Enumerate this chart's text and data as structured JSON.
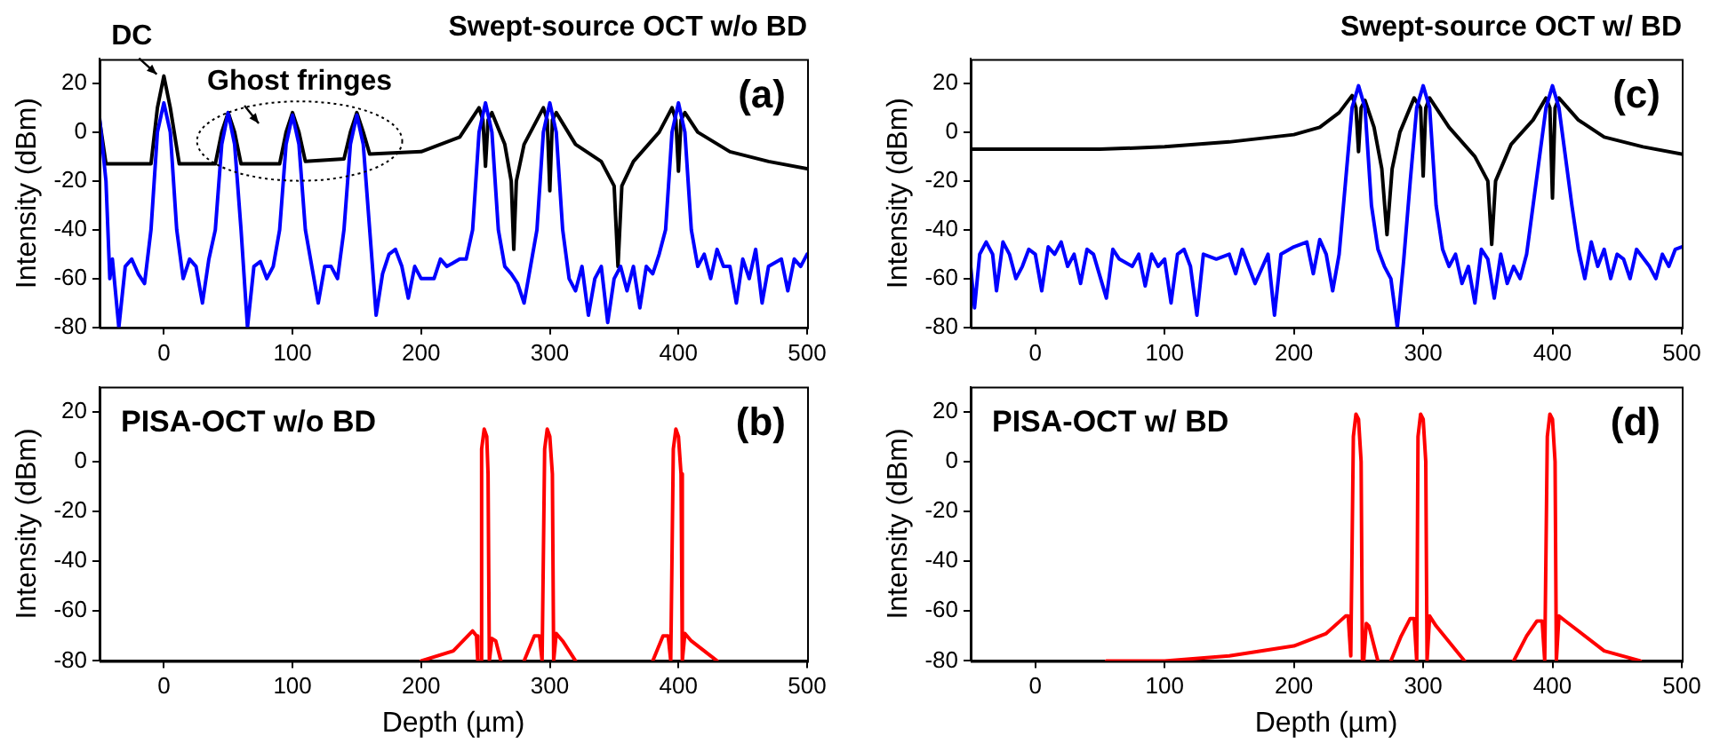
{
  "chart_data": [
    {
      "type": "line",
      "title": "Swept-source OCT w/o BD",
      "ylabel": "Intensity (dBm)",
      "xlim": [
        -50,
        500
      ],
      "xticks": [
        0,
        100,
        200,
        300,
        400,
        500
      ],
      "ylim": [
        -80,
        30
      ],
      "yticks": [
        -80,
        -60,
        -40,
        -20,
        0,
        20
      ],
      "grid": false,
      "legend": false,
      "marker": "none",
      "line_style": "solid",
      "annotations": [
        {
          "text": "DC",
          "x": 0,
          "y": 23
        },
        {
          "text": "Ghost fringes",
          "x": 100,
          "y": 8
        },
        "(a)"
      ],
      "series": [
        {
          "color": "#0000ff",
          "x": [
            -50,
            -45,
            -42,
            -40,
            -35,
            -30,
            -25,
            -20,
            -15,
            -10,
            -5,
            0,
            5,
            10,
            15,
            20,
            25,
            30,
            35,
            40,
            45,
            50,
            55,
            60,
            65,
            70,
            75,
            80,
            85,
            90,
            95,
            100,
            105,
            110,
            115,
            120,
            125,
            130,
            135,
            140,
            145,
            150,
            155,
            160,
            165,
            170,
            175,
            180,
            185,
            190,
            195,
            200,
            210,
            215,
            220,
            230,
            235,
            240,
            245,
            250,
            255,
            260,
            265,
            270,
            275,
            280,
            285,
            290,
            295,
            300,
            305,
            310,
            315,
            320,
            325,
            330,
            335,
            340,
            345,
            350,
            355,
            360,
            365,
            370,
            375,
            380,
            385,
            390,
            395,
            400,
            405,
            410,
            415,
            420,
            425,
            430,
            435,
            440,
            445,
            450,
            455,
            460,
            465,
            470,
            480,
            485,
            490,
            495,
            500
          ],
          "values": [
            6,
            -20,
            -60,
            -52,
            -80,
            -55,
            -52,
            -58,
            -62,
            -40,
            0,
            12,
            0,
            -40,
            -60,
            -52,
            -55,
            -70,
            -52,
            -40,
            -5,
            8,
            -5,
            -40,
            -80,
            -55,
            -53,
            -60,
            -55,
            -40,
            -5,
            7,
            -5,
            -40,
            -55,
            -70,
            -55,
            -55,
            -60,
            -40,
            -5,
            7,
            -5,
            -40,
            -75,
            -58,
            -50,
            -48,
            -55,
            -68,
            -55,
            -60,
            -60,
            -52,
            -55,
            -52,
            -52,
            -40,
            0,
            12,
            0,
            -40,
            -55,
            -58,
            -62,
            -70,
            -55,
            -40,
            0,
            12,
            0,
            -40,
            -60,
            -65,
            -55,
            -75,
            -60,
            -55,
            -78,
            -60,
            -55,
            -65,
            -55,
            -72,
            -55,
            -58,
            -50,
            -40,
            0,
            12,
            0,
            -40,
            -55,
            -50,
            -60,
            -48,
            -55,
            -55,
            -70,
            -52,
            -60,
            -48,
            -70,
            -55,
            -52,
            -65,
            -52,
            -55,
            -50
          ]
        },
        {
          "color": "#000000",
          "x": [
            -50,
            -45,
            -10,
            -5,
            0,
            5,
            12,
            40,
            45,
            50,
            55,
            60,
            90,
            95,
            100,
            105,
            110,
            140,
            145,
            150,
            155,
            160,
            200,
            230,
            245,
            248,
            250,
            252,
            255,
            265,
            270,
            272,
            274,
            280,
            295,
            298,
            300,
            302,
            305,
            320,
            340,
            350,
            353,
            356,
            365,
            385,
            395,
            398,
            400,
            402,
            405,
            415,
            440,
            470,
            500
          ],
          "values": [
            5,
            -13,
            -13,
            10,
            23,
            10,
            -13,
            -13,
            0,
            8,
            0,
            -13,
            -13,
            0,
            8,
            0,
            -12,
            -11,
            0,
            8,
            0,
            -9,
            -8,
            -2,
            10,
            5,
            -14,
            5,
            8,
            -5,
            -20,
            -48,
            -20,
            -5,
            10,
            5,
            -24,
            5,
            8,
            -5,
            -12,
            -22,
            -55,
            -22,
            -12,
            0,
            10,
            5,
            -16,
            5,
            8,
            0,
            -8,
            -12,
            -15
          ]
        }
      ]
    },
    {
      "type": "line",
      "title": "Swept-source OCT w/ BD",
      "ylabel": "Intensity (dBm)",
      "xlim": [
        -50,
        500
      ],
      "xticks": [
        0,
        100,
        200,
        300,
        400,
        500
      ],
      "ylim": [
        -80,
        30
      ],
      "yticks": [
        -80,
        -60,
        -40,
        -20,
        0,
        20
      ],
      "grid": false,
      "legend": false,
      "marker": "none",
      "line_style": "solid",
      "annotations": [
        "(c)"
      ],
      "series": [
        {
          "color": "#0000ff",
          "x": [
            -50,
            -47,
            -43,
            -38,
            -33,
            -30,
            -25,
            -20,
            -15,
            -10,
            -5,
            0,
            5,
            10,
            15,
            20,
            25,
            30,
            35,
            40,
            45,
            55,
            60,
            65,
            75,
            80,
            85,
            90,
            95,
            100,
            105,
            110,
            115,
            120,
            125,
            130,
            140,
            150,
            155,
            160,
            170,
            180,
            185,
            190,
            200,
            210,
            215,
            220,
            225,
            230,
            235,
            240,
            245,
            250,
            255,
            260,
            265,
            270,
            275,
            280,
            285,
            290,
            295,
            300,
            305,
            310,
            315,
            320,
            325,
            330,
            335,
            340,
            345,
            350,
            355,
            360,
            365,
            370,
            375,
            380,
            385,
            395,
            400,
            405,
            415,
            420,
            425,
            430,
            435,
            440,
            445,
            450,
            455,
            460,
            465,
            475,
            480,
            485,
            490,
            495,
            500
          ],
          "values": [
            -55,
            -72,
            -50,
            -45,
            -50,
            -65,
            -45,
            -50,
            -60,
            -55,
            -48,
            -50,
            -65,
            -47,
            -50,
            -45,
            -55,
            -50,
            -62,
            -48,
            -50,
            -68,
            -48,
            -52,
            -55,
            -50,
            -63,
            -50,
            -55,
            -52,
            -70,
            -50,
            -48,
            -55,
            -75,
            -50,
            -52,
            -50,
            -58,
            -48,
            -62,
            -50,
            -75,
            -50,
            -47,
            -45,
            -58,
            -44,
            -50,
            -65,
            -50,
            -20,
            10,
            19,
            10,
            -30,
            -48,
            -55,
            -60,
            -80,
            -52,
            -20,
            10,
            19,
            10,
            -30,
            -48,
            -55,
            -50,
            -62,
            -55,
            -70,
            -48,
            -52,
            -68,
            -50,
            -62,
            -55,
            -60,
            -50,
            -30,
            10,
            19,
            10,
            -30,
            -48,
            -60,
            -45,
            -55,
            -48,
            -60,
            -50,
            -52,
            -60,
            -48,
            -55,
            -60,
            -50,
            -55,
            -48,
            -47
          ]
        },
        {
          "color": "#000000",
          "x": [
            -50,
            50,
            100,
            150,
            200,
            220,
            235,
            245,
            248,
            250,
            252,
            255,
            262,
            268,
            272,
            276,
            282,
            293,
            298,
            300,
            302,
            305,
            320,
            340,
            350,
            353,
            356,
            368,
            385,
            395,
            398,
            400,
            402,
            405,
            420,
            440,
            470,
            500
          ],
          "values": [
            -7,
            -7,
            -6,
            -4,
            -1,
            2,
            8,
            15,
            10,
            -8,
            10,
            13,
            2,
            -15,
            -42,
            -15,
            0,
            14,
            10,
            -18,
            10,
            14,
            2,
            -10,
            -20,
            -46,
            -20,
            -5,
            5,
            14,
            10,
            -27,
            10,
            14,
            5,
            -2,
            -6,
            -9
          ]
        }
      ]
    },
    {
      "type": "line",
      "xlabel": "Depth (µm)",
      "ylabel": "Intensity (dBm)",
      "xlim": [
        -50,
        500
      ],
      "xticks": [
        0,
        100,
        200,
        300,
        400,
        500
      ],
      "ylim": [
        -80,
        30
      ],
      "yticks": [
        -80,
        -60,
        -40,
        -20,
        0,
        20
      ],
      "grid": false,
      "legend": false,
      "marker": "none",
      "line_style": "solid",
      "annotations": [
        "PISA-OCT w/o BD",
        "(b)"
      ],
      "series": [
        {
          "color": "#ff0000",
          "x": [
            200,
            225,
            240,
            243,
            244,
            246,
            247,
            249,
            251,
            252,
            253,
            254,
            255,
            258,
            262,
            270,
            280,
            288,
            292,
            294,
            296,
            298,
            300,
            302,
            303,
            305,
            310,
            320,
            350,
            380,
            388,
            392,
            394,
            396,
            398,
            400,
            402,
            403,
            405,
            410,
            430
          ],
          "values": [
            -80,
            -76,
            -68,
            -70,
            -80,
            -80,
            5,
            13,
            10,
            -5,
            -80,
            -80,
            -71,
            -72,
            -80,
            null,
            -80,
            -70,
            -70,
            -80,
            5,
            13,
            10,
            -5,
            -80,
            -69,
            -72,
            -80,
            null,
            -80,
            -70,
            -70,
            -80,
            5,
            13,
            10,
            -5,
            -80,
            -69,
            -72,
            -80
          ]
        }
      ]
    },
    {
      "type": "line",
      "xlabel": "Depth (µm)",
      "ylabel": "Intensity (dBm)",
      "xlim": [
        -50,
        500
      ],
      "xticks": [
        0,
        100,
        200,
        300,
        400,
        500
      ],
      "ylim": [
        -80,
        30
      ],
      "yticks": [
        -80,
        -60,
        -40,
        -20,
        0,
        20
      ],
      "grid": false,
      "legend": false,
      "marker": "none",
      "line_style": "solid",
      "annotations": [
        "PISA-OCT w/ BD",
        "(d)"
      ],
      "series": [
        {
          "color": "#ff0000",
          "x": [
            55,
            100,
            150,
            200,
            225,
            240,
            242,
            244,
            246,
            248,
            250,
            252,
            253,
            254,
            256,
            258,
            265,
            270,
            275,
            283,
            290,
            293,
            295,
            296,
            298,
            300,
            302,
            303,
            305,
            310,
            332,
            350,
            370,
            380,
            388,
            392,
            394,
            396,
            398,
            400,
            402,
            403,
            405,
            410,
            440,
            468
          ],
          "values": [
            -80,
            -80,
            -78,
            -74,
            -69,
            -62,
            -62,
            -78,
            10,
            19,
            17,
            0,
            -80,
            -80,
            -65,
            -66,
            -80,
            null,
            -80,
            -70,
            -63,
            -63,
            -80,
            10,
            19,
            17,
            0,
            -80,
            -62,
            -66,
            -80,
            null,
            -80,
            -70,
            -64,
            -64,
            -80,
            10,
            19,
            17,
            0,
            -80,
            -62,
            -64,
            -76,
            -80
          ]
        }
      ]
    }
  ]
}
